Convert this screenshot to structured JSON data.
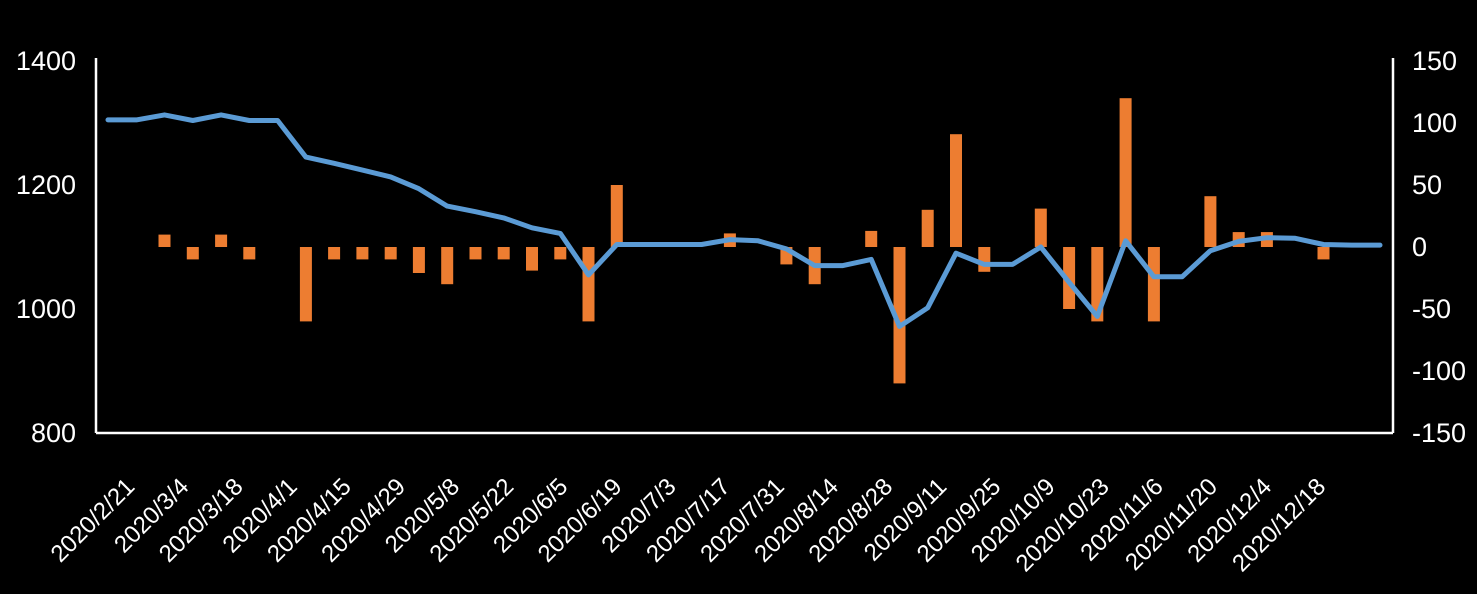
{
  "chart_data": {
    "type": "combo",
    "title": "",
    "background_color": "#000000",
    "grid": false,
    "legend": "none",
    "axis_line_color": "#FFFFFF",
    "text_color": "#FFFFFF",
    "x_axis": {
      "tick_labels": [
        "2020/2/21",
        "2020/3/4",
        "2020/3/18",
        "2020/4/1",
        "2020/4/15",
        "2020/4/29",
        "2020/5/8",
        "2020/5/22",
        "2020/6/5",
        "2020/6/19",
        "2020/7/3",
        "2020/7/17",
        "2020/7/31",
        "2020/8/14",
        "2020/8/28",
        "2020/9/11",
        "2020/9/25",
        "2020/10/9",
        "2020/10/23",
        "2020/11/6",
        "2020/11/20",
        "2020/12/4",
        "2020/12/18"
      ],
      "label_every_n_points": 2,
      "rotation_deg": -45
    },
    "left_axis": {
      "tick_labels": [
        "1400",
        "1200",
        "1000",
        "800"
      ],
      "range": [
        800,
        1400
      ]
    },
    "right_axis": {
      "tick_labels": [
        "150",
        "100",
        "50",
        "0",
        "-50",
        "-100",
        "-150"
      ],
      "range": [
        -150,
        150
      ]
    },
    "series": [
      {
        "name": "price-line",
        "type": "line",
        "axis": "left",
        "color": "#5B9BD5",
        "values": [
          1305,
          1305,
          1313,
          1304,
          1313,
          1304,
          1304,
          1245,
          1235,
          1224,
          1213,
          1194,
          1166,
          1157,
          1147,
          1131,
          1122,
          1055,
          1104,
          1104,
          1104,
          1104,
          1112,
          1110,
          1097,
          1070,
          1070,
          1080,
          972,
          1002,
          1090,
          1072,
          1072,
          1100,
          1043,
          988,
          1110,
          1052,
          1052,
          1094,
          1109,
          1115,
          1114,
          1104,
          1103,
          1103
        ]
      },
      {
        "name": "weekly-change-bars",
        "type": "bar",
        "axis": "right",
        "color": "#ED7D31",
        "values": [
          null,
          null,
          10,
          -10,
          10,
          -10,
          null,
          -60,
          -10,
          -10,
          -10,
          -21,
          -30,
          -10,
          -10,
          -19,
          -10,
          -60,
          50,
          null,
          null,
          null,
          11,
          null,
          -14,
          -30,
          null,
          13,
          -110,
          30,
          91,
          -20,
          null,
          31,
          -50,
          -60,
          120,
          -60,
          null,
          41,
          12,
          12,
          null,
          -10,
          null,
          null
        ]
      }
    ]
  }
}
